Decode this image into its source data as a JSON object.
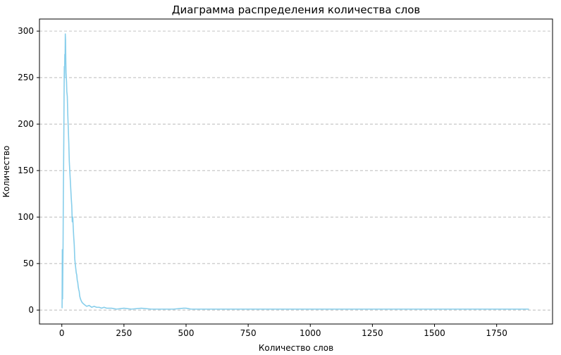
{
  "chart_data": {
    "type": "line",
    "title": "Диаграмма распределения количества слов",
    "xlabel": "Количество слов",
    "ylabel": "Количество",
    "xlim": [
      -90,
      1975
    ],
    "ylim": [
      -15,
      313
    ],
    "x_ticks": [
      0,
      250,
      500,
      750,
      1000,
      1250,
      1500,
      1750
    ],
    "y_ticks": [
      0,
      50,
      100,
      150,
      200,
      250,
      300
    ],
    "x_tick_labels": [
      "0",
      "250",
      "500",
      "750",
      "1000",
      "1250",
      "1500",
      "1750"
    ],
    "y_tick_labels": [
      "0",
      "50",
      "100",
      "150",
      "200",
      "250",
      "300"
    ],
    "grid": {
      "x": false,
      "y": true,
      "style": "dashed"
    },
    "colors": {
      "line": "#87ceeb",
      "grid": "#b0b0b0",
      "axes": "#000000"
    },
    "series": [
      {
        "values": [
          [
            1,
            2
          ],
          [
            2,
            65
          ],
          [
            3,
            12
          ],
          [
            4,
            45
          ],
          [
            5,
            70
          ],
          [
            6,
            118
          ],
          [
            7,
            150
          ],
          [
            8,
            185
          ],
          [
            9,
            230
          ],
          [
            10,
            262
          ],
          [
            11,
            250
          ],
          [
            12,
            275
          ],
          [
            13,
            265
          ],
          [
            14,
            297
          ],
          [
            15,
            290
          ],
          [
            16,
            268
          ],
          [
            17,
            255
          ],
          [
            18,
            250
          ],
          [
            19,
            245
          ],
          [
            20,
            235
          ],
          [
            22,
            230
          ],
          [
            24,
            210
          ],
          [
            26,
            195
          ],
          [
            28,
            180
          ],
          [
            30,
            160
          ],
          [
            32,
            150
          ],
          [
            34,
            140
          ],
          [
            36,
            130
          ],
          [
            38,
            120
          ],
          [
            40,
            112
          ],
          [
            42,
            95
          ],
          [
            44,
            100
          ],
          [
            46,
            88
          ],
          [
            48,
            78
          ],
          [
            50,
            70
          ],
          [
            52,
            55
          ],
          [
            54,
            50
          ],
          [
            56,
            45
          ],
          [
            58,
            40
          ],
          [
            60,
            38
          ],
          [
            62,
            32
          ],
          [
            64,
            30
          ],
          [
            66,
            25
          ],
          [
            68,
            22
          ],
          [
            70,
            20
          ],
          [
            72,
            15
          ],
          [
            75,
            12
          ],
          [
            78,
            10
          ],
          [
            82,
            8
          ],
          [
            86,
            7
          ],
          [
            90,
            6
          ],
          [
            95,
            5
          ],
          [
            100,
            4
          ],
          [
            110,
            5
          ],
          [
            120,
            3
          ],
          [
            130,
            4
          ],
          [
            140,
            3
          ],
          [
            150,
            3
          ],
          [
            160,
            2
          ],
          [
            170,
            3
          ],
          [
            180,
            2
          ],
          [
            200,
            2
          ],
          [
            220,
            1
          ],
          [
            250,
            2
          ],
          [
            280,
            1
          ],
          [
            320,
            2
          ],
          [
            360,
            1
          ],
          [
            400,
            1
          ],
          [
            450,
            1
          ],
          [
            490,
            2
          ],
          [
            500,
            2
          ],
          [
            520,
            1
          ],
          [
            600,
            1
          ],
          [
            700,
            1
          ],
          [
            800,
            1
          ],
          [
            900,
            1
          ],
          [
            1000,
            1
          ],
          [
            1100,
            1
          ],
          [
            1200,
            1
          ],
          [
            1300,
            1
          ],
          [
            1400,
            1
          ],
          [
            1500,
            1
          ],
          [
            1600,
            1
          ],
          [
            1700,
            1
          ],
          [
            1800,
            1
          ],
          [
            1880,
            1
          ]
        ]
      }
    ]
  }
}
